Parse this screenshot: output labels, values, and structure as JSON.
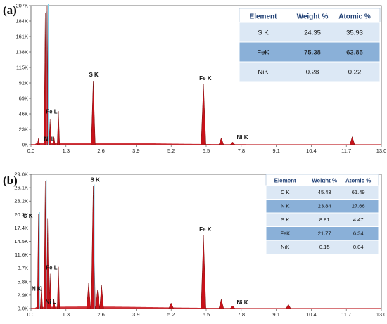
{
  "chart_data": [
    {
      "type": "area",
      "panel_label": "(a)",
      "y_tick_labels": [
        "0K",
        "23K",
        "46K",
        "69K",
        "92K",
        "115K",
        "138K",
        "161K",
        "184K",
        "207K"
      ],
      "x_tick_labels": [
        "0.0",
        "1.3",
        "2.6",
        "3.9",
        "5.2",
        "6.5",
        "7.8",
        "9.1",
        "10.4",
        "11.7",
        "13.0"
      ],
      "xlim": [
        0,
        13.0
      ],
      "ylim_k": [
        0,
        207
      ],
      "colors": {
        "fill": "#c8121a",
        "edge": "#7a1010",
        "highlight": "#7fd3ee",
        "table_header": "#ffffff",
        "table_row_alt": "#8ab0d8",
        "table_row": "#dce8f5"
      },
      "peaks": [
        {
          "label": "",
          "x": 0.28,
          "y": 10
        },
        {
          "label": "",
          "x": 0.53,
          "y": 196
        },
        {
          "label": "",
          "x": 0.6,
          "y": 207
        },
        {
          "label": "Fe L",
          "x": 0.71,
          "y": 38
        },
        {
          "label": "Ni L",
          "x": 0.85,
          "y": 12
        },
        {
          "label": "",
          "x": 1.02,
          "y": 50
        },
        {
          "label": "S K",
          "x": 2.31,
          "y": 95
        },
        {
          "label": "Fe K",
          "x": 6.4,
          "y": 90
        },
        {
          "label": "",
          "x": 7.06,
          "y": 10
        },
        {
          "label": "Ni K",
          "x": 7.48,
          "y": 4
        },
        {
          "label": "",
          "x": 11.92,
          "y": 12
        }
      ],
      "table": {
        "headers": [
          "Element",
          "Weight %",
          "Atomic %"
        ],
        "rows": [
          [
            "S K",
            "24.35",
            "35.93"
          ],
          [
            "FeK",
            "75.38",
            "63.85"
          ],
          [
            "NiK",
            "0.28",
            "0.22"
          ]
        ]
      }
    },
    {
      "type": "area",
      "panel_label": "(b)",
      "y_tick_labels": [
        "0.0K",
        "2.9K",
        "5.8K",
        "8.7K",
        "11.6K",
        "14.5K",
        "17.4K",
        "20.3K",
        "23.2K",
        "26.1K",
        "29.0K"
      ],
      "x_tick_labels": [
        "0.0",
        "1.3",
        "2.6",
        "3.9",
        "5.2",
        "6.5",
        "7.8",
        "9.1",
        "10.4",
        "11.7",
        "13.0"
      ],
      "xlim": [
        0,
        13.0
      ],
      "ylim_k": [
        0,
        29.0
      ],
      "colors": {
        "fill": "#c8121a",
        "edge": "#7a1010",
        "highlight": "#7fd3ee",
        "table_header": "#ffffff",
        "table_row_alt": "#8ab0d8",
        "table_row": "#dce8f5"
      },
      "peaks": [
        {
          "label": "C K",
          "x": 0.28,
          "y": 20.5
        },
        {
          "label": "",
          "x": 0.53,
          "y": 27.5
        },
        {
          "label": "",
          "x": 0.62,
          "y": 19.5
        },
        {
          "label": "N K",
          "x": 0.39,
          "y": 4.5
        },
        {
          "label": "Fe L",
          "x": 0.71,
          "y": 7.5
        },
        {
          "label": "Ni L",
          "x": 0.85,
          "y": 2.0
        },
        {
          "label": "",
          "x": 1.02,
          "y": 9.0
        },
        {
          "label": "",
          "x": 2.14,
          "y": 5.5
        },
        {
          "label": "S K",
          "x": 2.31,
          "y": 26.5
        },
        {
          "label": "",
          "x": 2.47,
          "y": 4.0
        },
        {
          "label": "",
          "x": 2.62,
          "y": 5.0
        },
        {
          "label": "",
          "x": 5.2,
          "y": 1.2
        },
        {
          "label": "Fe K",
          "x": 6.4,
          "y": 15.8
        },
        {
          "label": "",
          "x": 7.06,
          "y": 2.0
        },
        {
          "label": "Ni K",
          "x": 7.48,
          "y": 0.6
        },
        {
          "label": "",
          "x": 9.55,
          "y": 0.9
        }
      ],
      "table": {
        "headers": [
          "Element",
          "Weight %",
          "Atomic %"
        ],
        "rows": [
          [
            "C K",
            "45.43",
            "61.49"
          ],
          [
            "N K",
            "23.84",
            "27.66"
          ],
          [
            "S K",
            "8.81",
            "4.47"
          ],
          [
            "FeK",
            "21.77",
            "6.34"
          ],
          [
            "NiK",
            "0.15",
            "0.04"
          ]
        ]
      }
    }
  ]
}
